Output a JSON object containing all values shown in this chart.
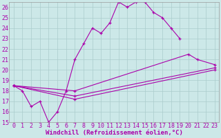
{
  "background_color": "#cce8e8",
  "grid_color": "#aacccc",
  "line_color": "#aa00aa",
  "xlim": [
    -0.5,
    23.5
  ],
  "ylim": [
    15,
    26.5
  ],
  "xlabel": "Windchill (Refroidissement éolien,°C)",
  "xlabel_fontsize": 6.5,
  "xticks": [
    0,
    1,
    2,
    3,
    4,
    5,
    6,
    7,
    8,
    9,
    10,
    11,
    12,
    13,
    14,
    15,
    16,
    17,
    18,
    19,
    20,
    21,
    22,
    23
  ],
  "yticks": [
    15,
    16,
    17,
    18,
    19,
    20,
    21,
    22,
    23,
    24,
    25,
    26
  ],
  "tick_fontsize": 6.0,
  "series": [
    {
      "x": [
        0,
        1,
        2,
        3,
        4,
        5,
        6,
        7,
        8,
        9,
        10,
        11,
        12,
        13,
        14,
        15,
        16,
        17,
        18,
        19
      ],
      "y": [
        18.5,
        18.0,
        16.5,
        17.0,
        15.0,
        16.0,
        18.0,
        21.0,
        22.5,
        24.0,
        23.5,
        24.5,
        26.5,
        26.0,
        26.5,
        26.5,
        25.5,
        25.0,
        24.0,
        23.0
      ]
    },
    {
      "x": [
        0,
        7,
        20,
        21,
        23
      ],
      "y": [
        18.5,
        18.0,
        21.5,
        21.0,
        20.5
      ]
    },
    {
      "x": [
        0,
        7,
        23
      ],
      "y": [
        18.5,
        17.5,
        20.2
      ]
    },
    {
      "x": [
        0,
        7,
        23
      ],
      "y": [
        18.5,
        17.2,
        20.0
      ]
    }
  ]
}
